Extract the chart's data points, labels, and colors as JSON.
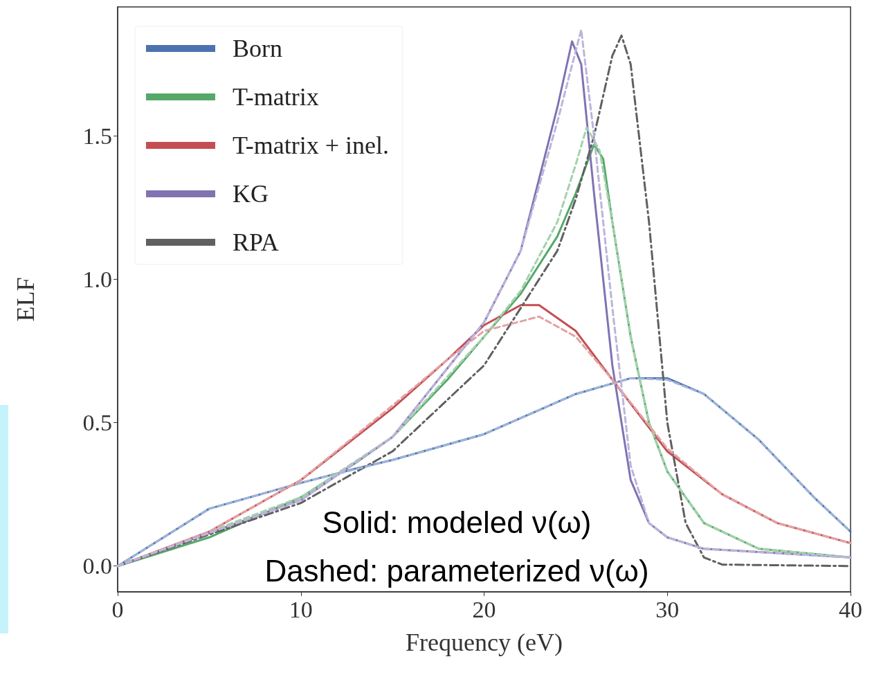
{
  "chart_data": {
    "type": "line",
    "xlabel": "Frequency (eV)",
    "ylabel": "ELF",
    "xlim": [
      0,
      40
    ],
    "xticks": [
      0,
      10,
      20,
      30,
      40
    ],
    "ylim": [
      -0.09,
      1.95
    ],
    "yticks": [
      {
        "value": 0,
        "label": "0.0"
      },
      {
        "value": 0.5,
        "label": "0.5"
      },
      {
        "value": 1,
        "label": "1.0"
      },
      {
        "value": 1.5,
        "label": "1.5"
      }
    ],
    "grid": false,
    "legend": "top left",
    "marker": "none",
    "annotations": [
      "Solid: modeled ν(ω)",
      "Dashed: parameterized ν(ω)"
    ],
    "series": [
      {
        "name": "Born",
        "color": "#4c72b0",
        "line_style": "solid",
        "x": [
          0,
          5,
          10,
          13,
          15,
          20,
          25,
          28,
          30,
          32,
          35,
          38,
          40
        ],
        "values": [
          0,
          0.2,
          0.29,
          0.34,
          0.37,
          0.46,
          0.6,
          0.655,
          0.655,
          0.6,
          0.44,
          0.24,
          0.12
        ]
      },
      {
        "name": "T-matrix",
        "color": "#55a868",
        "line_style": "solid",
        "x": [
          0,
          5,
          10,
          13,
          15,
          18,
          20,
          22,
          24,
          25,
          26,
          26.5,
          27,
          28,
          29,
          30,
          32,
          35,
          40
        ],
        "values": [
          0,
          0.1,
          0.24,
          0.36,
          0.45,
          0.65,
          0.8,
          0.95,
          1.15,
          1.3,
          1.47,
          1.42,
          1.2,
          0.8,
          0.5,
          0.33,
          0.15,
          0.06,
          0.03
        ]
      },
      {
        "name": "T-matrix + inel.",
        "color": "#c44e52",
        "line_style": "solid",
        "x": [
          0,
          5,
          10,
          15,
          18,
          20,
          22,
          23,
          25,
          27,
          30,
          33,
          36,
          40
        ],
        "values": [
          0,
          0.12,
          0.3,
          0.55,
          0.72,
          0.84,
          0.91,
          0.91,
          0.82,
          0.65,
          0.4,
          0.25,
          0.15,
          0.08
        ]
      },
      {
        "name": "KG",
        "color": "#8172b2",
        "line_style": "solid",
        "x": [
          0,
          10,
          15,
          20,
          22,
          23,
          24,
          24.8,
          25.3,
          26,
          27,
          28,
          29,
          30,
          32,
          40
        ],
        "values": [
          0,
          0.23,
          0.45,
          0.85,
          1.1,
          1.35,
          1.6,
          1.83,
          1.75,
          1.3,
          0.7,
          0.3,
          0.15,
          0.1,
          0.06,
          0.03
        ]
      },
      {
        "name": "RPA",
        "color": "#606060",
        "line_style": "dashdot",
        "x": [
          0,
          10,
          15,
          20,
          22,
          24,
          25,
          26,
          27,
          27.5,
          28,
          29,
          30,
          31,
          32,
          33,
          40
        ],
        "values": [
          0,
          0.22,
          0.4,
          0.7,
          0.9,
          1.1,
          1.28,
          1.5,
          1.78,
          1.85,
          1.75,
          1.2,
          0.5,
          0.15,
          0.03,
          0.005,
          0
        ]
      },
      {
        "color": "#9fb4d8",
        "line_style": "dashed",
        "x": [
          0,
          5,
          10,
          15,
          20,
          25,
          28,
          30,
          32,
          35,
          38,
          40
        ],
        "values": [
          0,
          0.2,
          0.29,
          0.37,
          0.46,
          0.6,
          0.655,
          0.65,
          0.6,
          0.44,
          0.24,
          0.12
        ]
      },
      {
        "color": "#a3d1ad",
        "line_style": "dashed",
        "x": [
          0,
          10,
          15,
          20,
          22,
          24,
          25,
          25.6,
          26.3,
          27,
          28,
          29,
          30,
          32,
          35,
          40
        ],
        "values": [
          0,
          0.24,
          0.45,
          0.8,
          0.96,
          1.2,
          1.4,
          1.53,
          1.45,
          1.2,
          0.8,
          0.5,
          0.33,
          0.15,
          0.06,
          0.03
        ]
      },
      {
        "color": "#e2a3a5",
        "line_style": "dashed",
        "x": [
          0,
          5,
          10,
          15,
          18,
          20,
          23,
          25,
          27,
          30,
          33,
          36,
          40
        ],
        "values": [
          0,
          0.12,
          0.3,
          0.56,
          0.72,
          0.82,
          0.87,
          0.8,
          0.65,
          0.41,
          0.25,
          0.15,
          0.08
        ]
      },
      {
        "color": "#bdb4db",
        "line_style": "dashed",
        "x": [
          0,
          10,
          15,
          20,
          22,
          24,
          25.3,
          26,
          27,
          28,
          29,
          30,
          32,
          40
        ],
        "values": [
          0,
          0.23,
          0.45,
          0.85,
          1.1,
          1.55,
          1.87,
          1.5,
          0.9,
          0.35,
          0.15,
          0.1,
          0.06,
          0.03
        ]
      }
    ]
  }
}
